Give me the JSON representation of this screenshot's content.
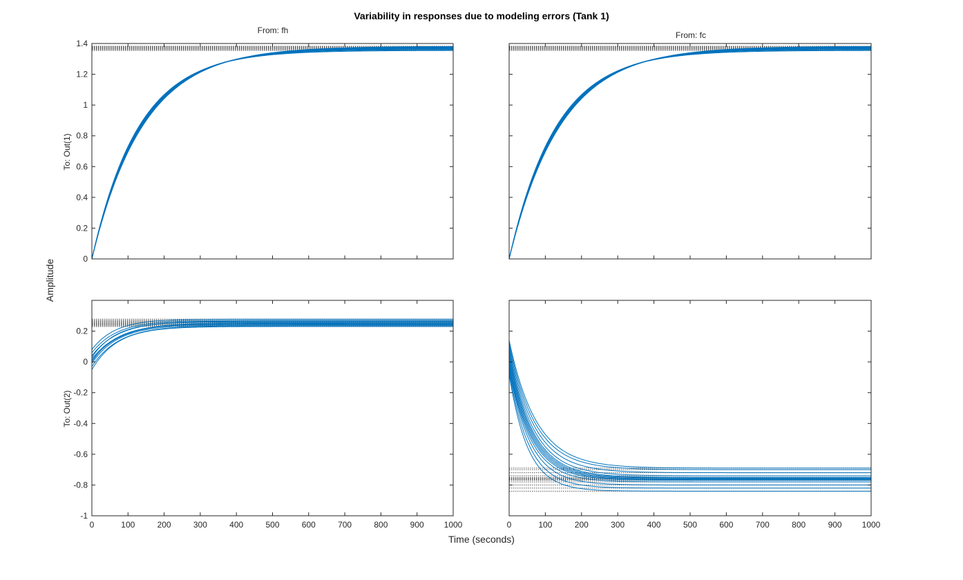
{
  "chart_data": {
    "type": "line",
    "title": "Variability in responses due to modeling errors (Tank 1)",
    "xlabel": "Time (seconds)",
    "ylabel": "Amplitude",
    "columns": [
      "From: fh",
      "From: fc"
    ],
    "rows": [
      "To: Out(1)",
      "To: Out(2)"
    ],
    "xlim": [
      0,
      1000
    ],
    "xticks": [
      0,
      100,
      200,
      300,
      400,
      500,
      600,
      700,
      800,
      900,
      1000
    ],
    "line_color": "#0072BD",
    "steady_state_line_color": "#555555",
    "grid": false,
    "subplots": [
      {
        "id": "out1-fh",
        "row": 0,
        "col": 0,
        "ylim": [
          0,
          1.4
        ],
        "yticks": [
          0,
          0.2,
          0.4,
          0.6,
          0.8,
          1,
          1.2,
          1.4
        ],
        "ytick_labels": [
          "0",
          "0.2",
          "0.4",
          "0.6",
          "0.8",
          "1",
          "1.2",
          "1.4"
        ],
        "show_ytick_labels": true,
        "show_xtick_labels": false,
        "series": [
          {
            "y0": 0,
            "final": 1.355,
            "tau": 129
          },
          {
            "y0": 0,
            "final": 1.36,
            "tau": 131
          },
          {
            "y0": 0,
            "final": 1.365,
            "tau": 133
          },
          {
            "y0": 0,
            "final": 1.368,
            "tau": 135
          },
          {
            "y0": 0,
            "final": 1.372,
            "tau": 137
          },
          {
            "y0": 0,
            "final": 1.375,
            "tau": 139
          },
          {
            "y0": 0,
            "final": 1.378,
            "tau": 141
          },
          {
            "y0": 0,
            "final": 1.382,
            "tau": 143
          }
        ]
      },
      {
        "id": "out1-fc",
        "row": 0,
        "col": 1,
        "ylim": [
          0,
          1.4
        ],
        "yticks": [
          0,
          0.2,
          0.4,
          0.6,
          0.8,
          1,
          1.2,
          1.4
        ],
        "ytick_labels": [
          "0",
          "0.2",
          "0.4",
          "0.6",
          "0.8",
          "1",
          "1.2",
          "1.4"
        ],
        "show_ytick_labels": false,
        "show_xtick_labels": false,
        "series": [
          {
            "y0": 0,
            "final": 1.355,
            "tau": 129
          },
          {
            "y0": 0,
            "final": 1.36,
            "tau": 131
          },
          {
            "y0": 0,
            "final": 1.365,
            "tau": 133
          },
          {
            "y0": 0,
            "final": 1.368,
            "tau": 135
          },
          {
            "y0": 0,
            "final": 1.372,
            "tau": 137
          },
          {
            "y0": 0,
            "final": 1.375,
            "tau": 139
          },
          {
            "y0": 0,
            "final": 1.378,
            "tau": 141
          },
          {
            "y0": 0,
            "final": 1.382,
            "tau": 143
          }
        ]
      },
      {
        "id": "out2-fh",
        "row": 1,
        "col": 0,
        "ylim": [
          -1,
          0.4
        ],
        "yticks": [
          -1,
          -0.8,
          -0.6,
          -0.4,
          -0.2,
          0,
          0.2
        ],
        "ytick_labels": [
          "-1",
          "-0.8",
          "-0.6",
          "-0.4",
          "-0.2",
          "0",
          "0.2"
        ],
        "show_ytick_labels": true,
        "show_xtick_labels": true,
        "series": [
          {
            "y0": -0.05,
            "final": 0.23,
            "tau": 70
          },
          {
            "y0": -0.03,
            "final": 0.235,
            "tau": 75
          },
          {
            "y0": -0.01,
            "final": 0.24,
            "tau": 72
          },
          {
            "y0": 0.0,
            "final": 0.245,
            "tau": 68
          },
          {
            "y0": 0.01,
            "final": 0.25,
            "tau": 78
          },
          {
            "y0": 0.02,
            "final": 0.255,
            "tau": 80
          },
          {
            "y0": 0.03,
            "final": 0.26,
            "tau": 66
          },
          {
            "y0": 0.04,
            "final": 0.265,
            "tau": 74
          },
          {
            "y0": 0.06,
            "final": 0.27,
            "tau": 70
          },
          {
            "y0": 0.08,
            "final": 0.278,
            "tau": 64
          }
        ]
      },
      {
        "id": "out2-fc",
        "row": 1,
        "col": 1,
        "ylim": [
          -1,
          0.4
        ],
        "yticks": [
          -1,
          -0.8,
          -0.6,
          -0.4,
          -0.2,
          0,
          0.2
        ],
        "ytick_labels": [
          "-1",
          "-0.8",
          "-0.6",
          "-0.4",
          "-0.2",
          "0",
          "0.2"
        ],
        "show_ytick_labels": false,
        "show_xtick_labels": true,
        "series": [
          {
            "y0": 0.14,
            "final": -0.69,
            "tau": 75
          },
          {
            "y0": 0.12,
            "final": -0.7,
            "tau": 72
          },
          {
            "y0": 0.1,
            "final": -0.72,
            "tau": 70
          },
          {
            "y0": 0.08,
            "final": -0.74,
            "tau": 68
          },
          {
            "y0": 0.06,
            "final": -0.75,
            "tau": 66
          },
          {
            "y0": 0.04,
            "final": -0.755,
            "tau": 65
          },
          {
            "y0": 0.02,
            "final": -0.76,
            "tau": 64
          },
          {
            "y0": 0.0,
            "final": -0.765,
            "tau": 63
          },
          {
            "y0": -0.02,
            "final": -0.77,
            "tau": 62
          },
          {
            "y0": -0.03,
            "final": -0.78,
            "tau": 60
          },
          {
            "y0": -0.04,
            "final": -0.8,
            "tau": 58
          },
          {
            "y0": -0.06,
            "final": -0.82,
            "tau": 55
          },
          {
            "y0": -0.08,
            "final": -0.84,
            "tau": 52
          }
        ]
      }
    ]
  }
}
